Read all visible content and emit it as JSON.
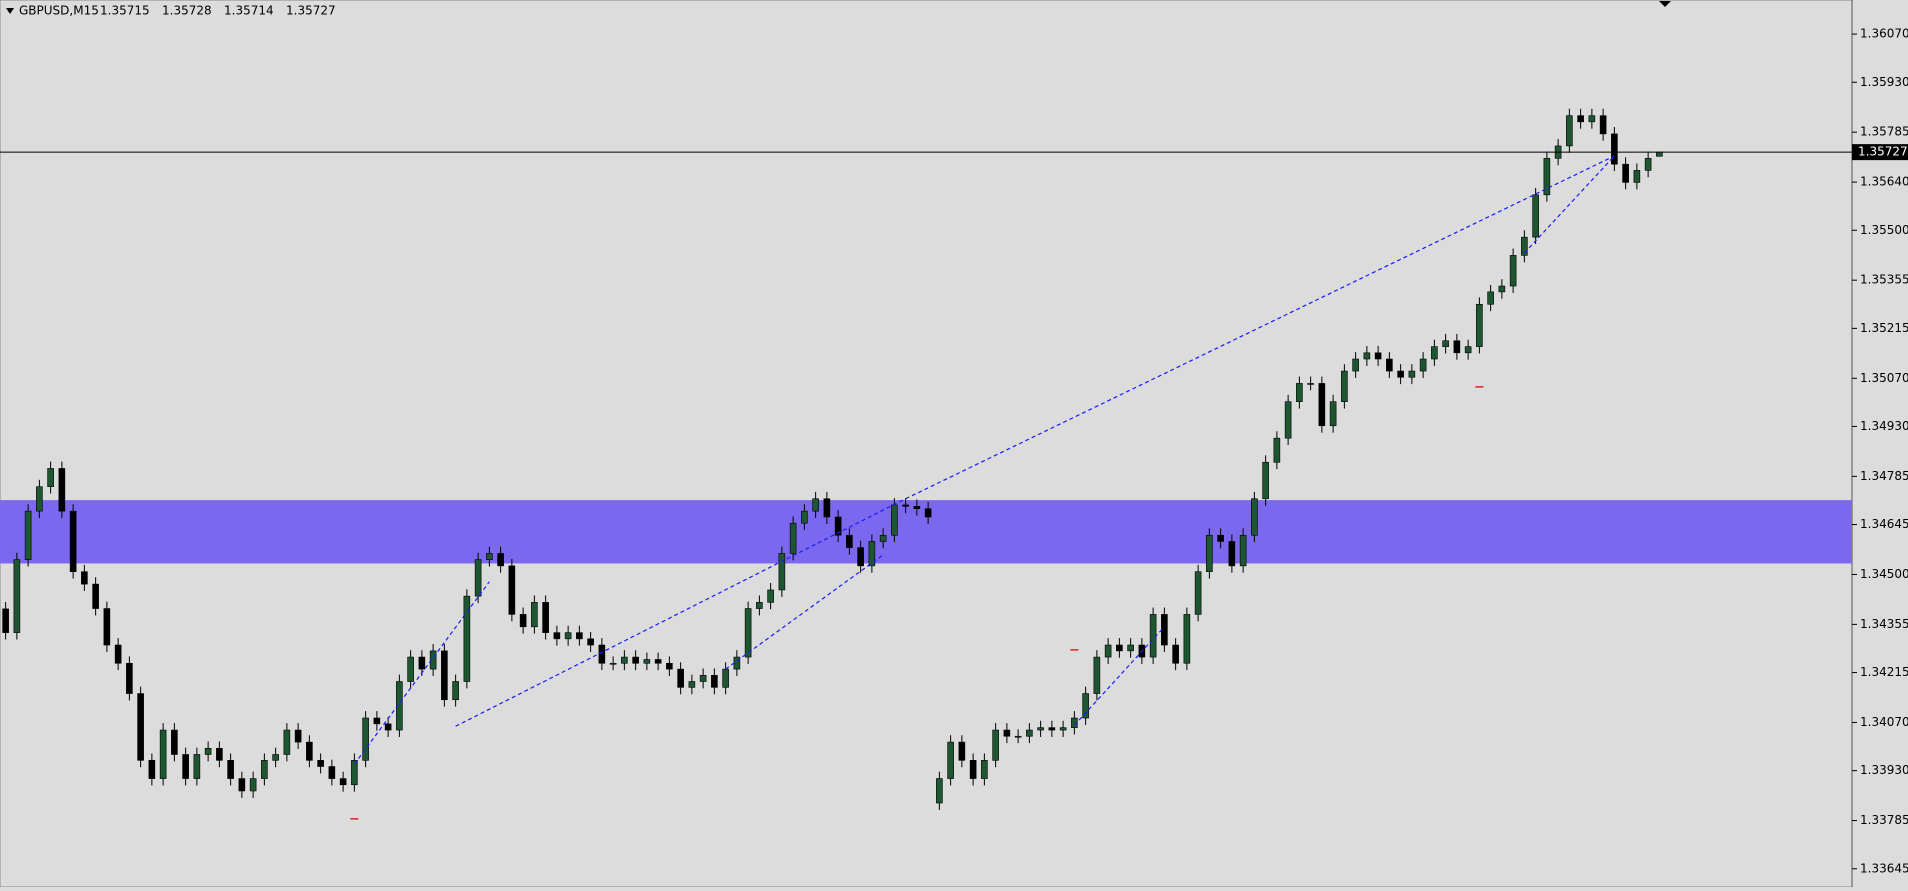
{
  "chart_data": {
    "type": "candlestick",
    "title": "GBPUSD,M15",
    "quote": [
      1.35715,
      1.35728,
      1.35714,
      1.35727
    ],
    "last_price": 1.35727,
    "ylim": [
      1.33592,
      1.36169
    ],
    "yticks": [
      {
        "value": 1.3607,
        "label": "1.36070"
      },
      {
        "value": 1.3593,
        "label": "1.35930"
      },
      1.35785,
      {
        "value": 1.3564,
        "label": "1.35640"
      },
      {
        "value": 1.355,
        "label": "1.35500"
      },
      1.35355,
      1.35215,
      {
        "value": 1.3507,
        "label": "1.35070"
      },
      {
        "value": 1.3493,
        "label": "1.34930"
      },
      1.34785,
      1.34645,
      {
        "value": 1.345,
        "label": "1.34500"
      },
      1.34355,
      1.34215,
      {
        "value": 1.3407,
        "label": "1.34070"
      },
      {
        "value": 1.3393,
        "label": "1.33930"
      },
      1.33785,
      1.33645
    ],
    "up_color": "#1e5631",
    "down_color": "#000000",
    "zones": [
      {
        "from": 1.34532,
        "to": 1.34716,
        "color": "#7b68ee"
      }
    ],
    "trendlines": [
      {
        "i0": 31,
        "p0": 1.33949,
        "i1": 43,
        "p1": 1.34479
      },
      {
        "i0": 40,
        "p0": 1.34059,
        "i1": 80,
        "p1": 1.3472
      },
      {
        "i0": 80,
        "p0": 1.3472,
        "i1": 143,
        "p1": 1.35716
      },
      {
        "i0": 64,
        "p0": 1.34225,
        "i1": 78,
        "p1": 1.34557
      },
      {
        "i0": 95,
        "p0": 1.34062,
        "i1": 103,
        "p1": 1.34348
      },
      {
        "i0": 135,
        "p0": 1.35434,
        "i1": 143,
        "p1": 1.35716
      }
    ],
    "line_color": "#1a1aff",
    "markers": [
      {
        "i": 31,
        "p": 1.3379
      },
      {
        "i": 95,
        "p": 1.34281
      },
      {
        "i": 131,
        "p": 1.35045
      }
    ],
    "marker_color": "#e02020",
    "open": [
      1.344,
      1.34331,
      1.34543,
      1.34684,
      1.34755,
      1.34808,
      1.34684,
      1.34508,
      1.34472,
      1.34401,
      1.34295,
      1.34242,
      1.34154,
      1.3396,
      1.33907,
      1.34048,
      1.33977,
      1.33907,
      1.33977,
      1.33995,
      1.3396,
      1.33907,
      1.33871,
      1.33907,
      1.3396,
      1.33977,
      1.34048,
      1.34013,
      1.3396,
      1.33942,
      1.33907,
      1.33889,
      1.3396,
      1.34083,
      1.34066,
      1.34048,
      1.34189,
      1.3426,
      1.34225,
      1.34278,
      1.34136,
      1.34189,
      1.34437,
      1.34543,
      1.34561,
      1.34525,
      1.34384,
      1.34348,
      1.34419,
      1.34331,
      1.34313,
      1.34331,
      1.34313,
      1.34295,
      1.34242,
      1.34242,
      1.3426,
      1.34242,
      1.34253,
      1.34242,
      1.34225,
      1.34172,
      1.34189,
      1.34207,
      1.34172,
      1.34225,
      1.3426,
      1.34401,
      1.34419,
      1.34455,
      1.34561,
      1.34649,
      1.34684,
      1.3472,
      1.34667,
      1.34614,
      1.34578,
      1.34525,
      1.34596,
      1.34614,
      1.34702,
      1.34698,
      1.34691,
      1.33836,
      1.33907,
      1.34013,
      1.3396,
      1.33907,
      1.3396,
      1.34048,
      1.3403,
      1.3403,
      1.34048,
      1.34055,
      1.34048,
      1.34055,
      1.34083,
      1.34154,
      1.3426,
      1.34295,
      1.34278,
      1.34295,
      1.3426,
      1.34384,
      1.34295,
      1.34242,
      1.34384,
      1.34508,
      1.34614,
      1.34596,
      1.34525,
      1.34614,
      1.3472,
      1.34826,
      1.34896,
      1.35002,
      1.35055,
      1.35055,
      1.34932,
      1.35002,
      1.35091,
      1.35126,
      1.35144,
      1.35126,
      1.35091,
      1.35073,
      1.35091,
      1.35126,
      1.35162,
      1.35179,
      1.35144,
      1.35162,
      1.35285,
      1.35321,
      1.35338,
      1.35427,
      1.3548,
      1.35603,
      1.35709,
      1.35745,
      1.35833,
      1.35815,
      1.35833,
      1.3578,
      1.35692,
      1.35639,
      1.35674,
      1.35715
    ],
    "high": [
      1.3442,
      1.34563,
      1.34704,
      1.34775,
      1.34828,
      1.34828,
      1.34704,
      1.34528,
      1.34492,
      1.34421,
      1.34315,
      1.34262,
      1.34174,
      1.3398,
      1.34068,
      1.34068,
      1.33997,
      1.33997,
      1.34015,
      1.34015,
      1.3398,
      1.33927,
      1.33927,
      1.3398,
      1.33997,
      1.34068,
      1.34068,
      1.34033,
      1.3398,
      1.33962,
      1.33927,
      1.3398,
      1.34103,
      1.34103,
      1.34086,
      1.34209,
      1.3428,
      1.3428,
      1.34298,
      1.34298,
      1.34209,
      1.34457,
      1.34563,
      1.34581,
      1.34581,
      1.34545,
      1.34404,
      1.34439,
      1.34439,
      1.34351,
      1.34351,
      1.34351,
      1.34333,
      1.34315,
      1.34262,
      1.3428,
      1.3428,
      1.34273,
      1.34273,
      1.34262,
      1.34245,
      1.34209,
      1.34227,
      1.34227,
      1.34245,
      1.3428,
      1.34421,
      1.34439,
      1.34475,
      1.34581,
      1.34669,
      1.34704,
      1.3474,
      1.3474,
      1.34687,
      1.34634,
      1.34598,
      1.34616,
      1.34634,
      1.34722,
      1.34722,
      1.34718,
      1.34711,
      1.33927,
      1.34033,
      1.34033,
      1.3398,
      1.3398,
      1.34068,
      1.34068,
      1.3405,
      1.34068,
      1.34075,
      1.34075,
      1.34075,
      1.34103,
      1.34174,
      1.3428,
      1.34315,
      1.34315,
      1.34315,
      1.34315,
      1.34404,
      1.34404,
      1.34315,
      1.34404,
      1.34528,
      1.34634,
      1.34634,
      1.34616,
      1.34634,
      1.3474,
      1.34846,
      1.34916,
      1.35022,
      1.35075,
      1.35075,
      1.35075,
      1.35022,
      1.35111,
      1.35146,
      1.35164,
      1.35164,
      1.35146,
      1.35111,
      1.35111,
      1.35146,
      1.35182,
      1.35199,
      1.35199,
      1.35182,
      1.35305,
      1.35341,
      1.35358,
      1.35447,
      1.355,
      1.35623,
      1.35729,
      1.35765,
      1.35853,
      1.35853,
      1.35853,
      1.35853,
      1.358,
      1.35712,
      1.35694,
      1.35729,
      1.35728
    ],
    "low": [
      1.34311,
      1.34311,
      1.34523,
      1.34664,
      1.34735,
      1.34664,
      1.34488,
      1.34452,
      1.34381,
      1.34275,
      1.34222,
      1.34134,
      1.3394,
      1.33887,
      1.33887,
      1.33957,
      1.33887,
      1.33887,
      1.33957,
      1.3394,
      1.33887,
      1.33851,
      1.33851,
      1.33887,
      1.3394,
      1.33957,
      1.33993,
      1.3394,
      1.33922,
      1.33887,
      1.33869,
      1.33869,
      1.3394,
      1.34046,
      1.34028,
      1.34028,
      1.34169,
      1.34205,
      1.34205,
      1.34116,
      1.34116,
      1.34169,
      1.34417,
      1.34523,
      1.34505,
      1.34364,
      1.34328,
      1.34328,
      1.34311,
      1.34293,
      1.34293,
      1.34293,
      1.34275,
      1.34222,
      1.34222,
      1.34222,
      1.34222,
      1.34222,
      1.34222,
      1.34205,
      1.34152,
      1.34152,
      1.34169,
      1.34152,
      1.34152,
      1.34205,
      1.3424,
      1.34381,
      1.34399,
      1.34435,
      1.34541,
      1.34629,
      1.34664,
      1.34647,
      1.34594,
      1.34558,
      1.34505,
      1.34505,
      1.34576,
      1.34594,
      1.34678,
      1.34671,
      1.34647,
      1.33816,
      1.33887,
      1.3394,
      1.33887,
      1.33887,
      1.3394,
      1.3401,
      1.3401,
      1.3401,
      1.34028,
      1.34028,
      1.34028,
      1.34035,
      1.34063,
      1.34134,
      1.3424,
      1.34258,
      1.34258,
      1.3424,
      1.3424,
      1.34275,
      1.34222,
      1.34222,
      1.34364,
      1.34488,
      1.34576,
      1.34505,
      1.34505,
      1.34594,
      1.347,
      1.34806,
      1.34876,
      1.34982,
      1.35035,
      1.34912,
      1.34912,
      1.34982,
      1.35071,
      1.35106,
      1.35106,
      1.35071,
      1.35053,
      1.35053,
      1.35071,
      1.35106,
      1.35142,
      1.35124,
      1.35124,
      1.35142,
      1.35265,
      1.35301,
      1.35318,
      1.35407,
      1.3546,
      1.35583,
      1.35689,
      1.35725,
      1.35795,
      1.35795,
      1.3576,
      1.35672,
      1.35619,
      1.35619,
      1.35654,
      1.35714
    ],
    "close": [
      1.34331,
      1.34543,
      1.34684,
      1.34755,
      1.34808,
      1.34684,
      1.34508,
      1.34472,
      1.34401,
      1.34295,
      1.34242,
      1.34154,
      1.3396,
      1.33907,
      1.34048,
      1.33977,
      1.33907,
      1.33977,
      1.33995,
      1.3396,
      1.33907,
      1.33871,
      1.33907,
      1.3396,
      1.33977,
      1.34048,
      1.34013,
      1.3396,
      1.33942,
      1.33907,
      1.33889,
      1.3396,
      1.34083,
      1.34066,
      1.34048,
      1.34189,
      1.3426,
      1.34225,
      1.34278,
      1.34136,
      1.34189,
      1.34437,
      1.34543,
      1.34561,
      1.34525,
      1.34384,
      1.34348,
      1.34419,
      1.34331,
      1.34313,
      1.34331,
      1.34313,
      1.34295,
      1.34242,
      1.34242,
      1.3426,
      1.34242,
      1.34253,
      1.34242,
      1.34225,
      1.34172,
      1.34189,
      1.34207,
      1.34172,
      1.34225,
      1.3426,
      1.34401,
      1.34419,
      1.34455,
      1.34561,
      1.34649,
      1.34684,
      1.3472,
      1.34667,
      1.34614,
      1.34578,
      1.34525,
      1.34596,
      1.34614,
      1.34702,
      1.34698,
      1.34691,
      1.34667,
      1.33907,
      1.34013,
      1.3396,
      1.33907,
      1.3396,
      1.34048,
      1.3403,
      1.3403,
      1.34048,
      1.34055,
      1.34048,
      1.34055,
      1.34083,
      1.34154,
      1.3426,
      1.34295,
      1.34278,
      1.34295,
      1.3426,
      1.34384,
      1.34295,
      1.34242,
      1.34384,
      1.34508,
      1.34614,
      1.34596,
      1.34525,
      1.34614,
      1.3472,
      1.34826,
      1.34896,
      1.35002,
      1.35055,
      1.35055,
      1.34932,
      1.35002,
      1.35091,
      1.35126,
      1.35144,
      1.35126,
      1.35091,
      1.35073,
      1.35091,
      1.35126,
      1.35162,
      1.35179,
      1.35144,
      1.35162,
      1.35285,
      1.35321,
      1.35338,
      1.35427,
      1.3548,
      1.35603,
      1.35709,
      1.35745,
      1.35833,
      1.35815,
      1.35833,
      1.3578,
      1.35692,
      1.35639,
      1.35674,
      1.35709,
      1.35727
    ]
  }
}
